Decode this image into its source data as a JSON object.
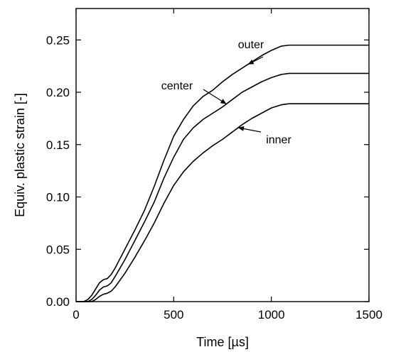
{
  "chart_data": {
    "type": "line",
    "xlabel": "Time [µs]",
    "ylabel": "Equiv. plastic strain [-]",
    "xlim": [
      0,
      1500
    ],
    "ylim": [
      0,
      0.28
    ],
    "xticks": [
      0,
      500,
      1000,
      1500
    ],
    "xtick_labels": [
      "0",
      "500",
      "1000",
      "1500"
    ],
    "yticks": [
      0.0,
      0.05,
      0.1,
      0.15,
      0.2,
      0.25
    ],
    "ytick_labels": [
      "0.00",
      "0.05",
      "0.10",
      "0.15",
      "0.20",
      "0.25"
    ],
    "grid": false,
    "series": [
      {
        "name": "outer",
        "x": [
          0,
          40,
          60,
          80,
          100,
          120,
          140,
          160,
          180,
          200,
          250,
          300,
          350,
          400,
          450,
          500,
          550,
          600,
          650,
          700,
          750,
          800,
          850,
          900,
          950,
          1000,
          1050,
          1090,
          1100,
          1200,
          1300,
          1400,
          1500
        ],
        "y": [
          0,
          0,
          0.002,
          0.006,
          0.012,
          0.018,
          0.021,
          0.022,
          0.026,
          0.032,
          0.05,
          0.068,
          0.087,
          0.11,
          0.135,
          0.158,
          0.174,
          0.187,
          0.196,
          0.202,
          0.21,
          0.217,
          0.223,
          0.229,
          0.235,
          0.24,
          0.244,
          0.245,
          0.245,
          0.245,
          0.245,
          0.245,
          0.245
        ]
      },
      {
        "name": "center",
        "x": [
          0,
          60,
          80,
          100,
          120,
          140,
          160,
          180,
          200,
          250,
          300,
          350,
          400,
          450,
          500,
          550,
          600,
          650,
          700,
          750,
          800,
          850,
          900,
          950,
          1000,
          1050,
          1090,
          1100,
          1200,
          1300,
          1400,
          1500
        ],
        "y": [
          0,
          0,
          0.002,
          0.006,
          0.011,
          0.014,
          0.015,
          0.018,
          0.024,
          0.04,
          0.058,
          0.076,
          0.095,
          0.118,
          0.138,
          0.155,
          0.166,
          0.174,
          0.18,
          0.186,
          0.193,
          0.2,
          0.205,
          0.21,
          0.214,
          0.217,
          0.218,
          0.218,
          0.218,
          0.218,
          0.218,
          0.218
        ]
      },
      {
        "name": "inner",
        "x": [
          0,
          80,
          100,
          120,
          140,
          160,
          180,
          200,
          250,
          300,
          350,
          400,
          450,
          500,
          550,
          600,
          650,
          700,
          750,
          800,
          850,
          900,
          950,
          1000,
          1050,
          1090,
          1100,
          1200,
          1300,
          1400,
          1500
        ],
        "y": [
          0,
          0,
          0.002,
          0.005,
          0.007,
          0.008,
          0.01,
          0.014,
          0.027,
          0.042,
          0.058,
          0.075,
          0.094,
          0.111,
          0.124,
          0.134,
          0.142,
          0.149,
          0.155,
          0.162,
          0.169,
          0.175,
          0.18,
          0.185,
          0.188,
          0.189,
          0.189,
          0.189,
          0.189,
          0.189,
          0.189
        ]
      }
    ],
    "annotations": [
      {
        "text": "outer",
        "series": "outer"
      },
      {
        "text": "center",
        "series": "center"
      },
      {
        "text": "inner",
        "series": "inner"
      }
    ]
  }
}
